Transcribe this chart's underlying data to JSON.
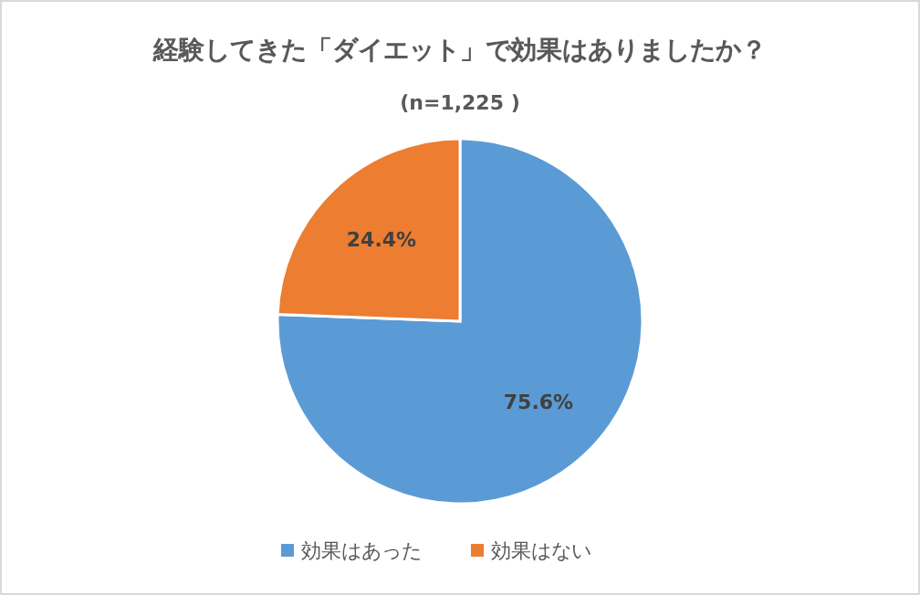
{
  "chart_data": {
    "type": "pie",
    "title": "経験してきた「ダイエット」で効果はありましたか？",
    "subtitle": "(n=1,225 )",
    "categories": [
      "効果はあった",
      "効果はない"
    ],
    "values": [
      75.6,
      24.4
    ],
    "colors": [
      "#5b9bd5",
      "#ed7d31"
    ],
    "value_labels": [
      "75.6%",
      "24.4%"
    ],
    "legend": "bottom"
  }
}
